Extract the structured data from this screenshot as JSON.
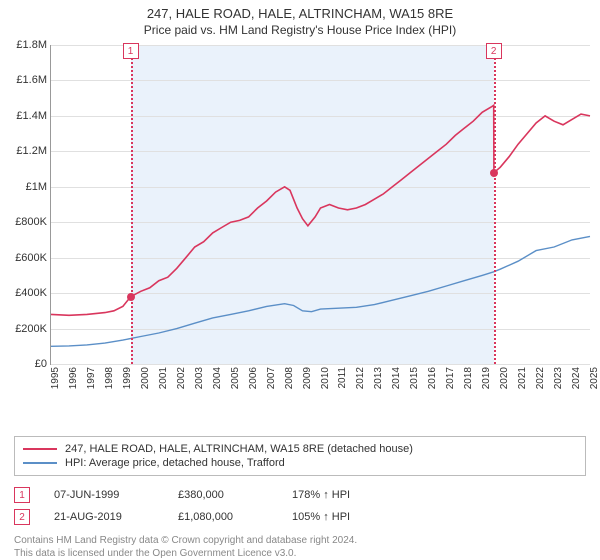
{
  "title": "247, HALE ROAD, HALE, ALTRINCHAM, WA15 8RE",
  "subtitle": "Price paid vs. HM Land Registry's House Price Index (HPI)",
  "chart": {
    "type": "line",
    "x_min": 1995,
    "x_max": 2025,
    "y_min": 0,
    "y_max": 1800000,
    "y_ticks": [
      0,
      200000,
      400000,
      600000,
      800000,
      1000000,
      1200000,
      1400000,
      1600000,
      1800000
    ],
    "y_tick_labels": [
      "£0",
      "£200K",
      "£400K",
      "£600K",
      "£800K",
      "£1M",
      "£1.2M",
      "£1.4M",
      "£1.6M",
      "£1.8M"
    ],
    "x_ticks": [
      1995,
      1996,
      1997,
      1998,
      1999,
      2000,
      2001,
      2002,
      2003,
      2004,
      2005,
      2006,
      2007,
      2008,
      2009,
      2010,
      2011,
      2012,
      2013,
      2014,
      2015,
      2016,
      2017,
      2018,
      2019,
      2020,
      2021,
      2022,
      2023,
      2024,
      2025
    ],
    "background_color": "#ffffff",
    "grid_color": "#e0e0e0",
    "axis_color": "#999999",
    "shade_color": "#eaf2fb",
    "shade_x_from": 1999.43,
    "shade_x_to": 2019.64,
    "series": [
      {
        "name": "price_paid",
        "color": "#d9365d",
        "width": 1.6,
        "points": [
          [
            1995.0,
            280000
          ],
          [
            1996.0,
            275000
          ],
          [
            1997.0,
            280000
          ],
          [
            1998.0,
            290000
          ],
          [
            1998.5,
            300000
          ],
          [
            1999.0,
            325000
          ],
          [
            1999.43,
            380000
          ],
          [
            2000.0,
            410000
          ],
          [
            2000.5,
            430000
          ],
          [
            2001.0,
            470000
          ],
          [
            2001.5,
            490000
          ],
          [
            2002.0,
            540000
          ],
          [
            2002.5,
            600000
          ],
          [
            2003.0,
            660000
          ],
          [
            2003.5,
            690000
          ],
          [
            2004.0,
            740000
          ],
          [
            2004.5,
            770000
          ],
          [
            2005.0,
            800000
          ],
          [
            2005.5,
            810000
          ],
          [
            2006.0,
            830000
          ],
          [
            2006.5,
            880000
          ],
          [
            2007.0,
            920000
          ],
          [
            2007.5,
            970000
          ],
          [
            2008.0,
            1000000
          ],
          [
            2008.3,
            980000
          ],
          [
            2008.7,
            880000
          ],
          [
            2009.0,
            820000
          ],
          [
            2009.3,
            780000
          ],
          [
            2009.7,
            830000
          ],
          [
            2010.0,
            880000
          ],
          [
            2010.5,
            900000
          ],
          [
            2011.0,
            880000
          ],
          [
            2011.5,
            870000
          ],
          [
            2012.0,
            880000
          ],
          [
            2012.5,
            900000
          ],
          [
            2013.0,
            930000
          ],
          [
            2013.5,
            960000
          ],
          [
            2014.0,
            1000000
          ],
          [
            2014.5,
            1040000
          ],
          [
            2015.0,
            1080000
          ],
          [
            2015.5,
            1120000
          ],
          [
            2016.0,
            1160000
          ],
          [
            2016.5,
            1200000
          ],
          [
            2017.0,
            1240000
          ],
          [
            2017.5,
            1290000
          ],
          [
            2018.0,
            1330000
          ],
          [
            2018.5,
            1370000
          ],
          [
            2019.0,
            1420000
          ],
          [
            2019.5,
            1450000
          ],
          [
            2019.64,
            1460000
          ],
          [
            2019.65,
            1080000
          ],
          [
            2020.0,
            1110000
          ],
          [
            2020.5,
            1170000
          ],
          [
            2021.0,
            1240000
          ],
          [
            2021.5,
            1300000
          ],
          [
            2022.0,
            1360000
          ],
          [
            2022.5,
            1400000
          ],
          [
            2023.0,
            1370000
          ],
          [
            2023.5,
            1350000
          ],
          [
            2024.0,
            1380000
          ],
          [
            2024.5,
            1410000
          ],
          [
            2025.0,
            1400000
          ]
        ]
      },
      {
        "name": "hpi",
        "color": "#5b8fc7",
        "width": 1.4,
        "points": [
          [
            1995.0,
            100000
          ],
          [
            1996.0,
            102000
          ],
          [
            1997.0,
            108000
          ],
          [
            1998.0,
            118000
          ],
          [
            1999.0,
            135000
          ],
          [
            2000.0,
            155000
          ],
          [
            2001.0,
            175000
          ],
          [
            2002.0,
            200000
          ],
          [
            2003.0,
            230000
          ],
          [
            2004.0,
            260000
          ],
          [
            2005.0,
            280000
          ],
          [
            2006.0,
            300000
          ],
          [
            2007.0,
            325000
          ],
          [
            2008.0,
            340000
          ],
          [
            2008.5,
            330000
          ],
          [
            2009.0,
            300000
          ],
          [
            2009.5,
            295000
          ],
          [
            2010.0,
            310000
          ],
          [
            2011.0,
            315000
          ],
          [
            2012.0,
            320000
          ],
          [
            2013.0,
            335000
          ],
          [
            2014.0,
            360000
          ],
          [
            2015.0,
            385000
          ],
          [
            2016.0,
            410000
          ],
          [
            2017.0,
            440000
          ],
          [
            2018.0,
            470000
          ],
          [
            2019.0,
            500000
          ],
          [
            2019.64,
            520000
          ],
          [
            2020.0,
            535000
          ],
          [
            2021.0,
            580000
          ],
          [
            2022.0,
            640000
          ],
          [
            2023.0,
            660000
          ],
          [
            2024.0,
            700000
          ],
          [
            2025.0,
            720000
          ]
        ]
      }
    ],
    "markers": [
      {
        "n": "1",
        "x": 1999.43,
        "y": 380000,
        "color": "#d9365d"
      },
      {
        "n": "2",
        "x": 2019.64,
        "y": 1080000,
        "color": "#d9365d"
      }
    ]
  },
  "legend": [
    {
      "color": "#d9365d",
      "label": "247, HALE ROAD, HALE, ALTRINCHAM, WA15 8RE (detached house)"
    },
    {
      "color": "#5b8fc7",
      "label": "HPI: Average price, detached house, Trafford"
    }
  ],
  "sales": [
    {
      "n": "1",
      "date": "07-JUN-1999",
      "price": "£380,000",
      "hpi": "178% ↑ HPI"
    },
    {
      "n": "2",
      "date": "21-AUG-2019",
      "price": "£1,080,000",
      "hpi": "105% ↑ HPI"
    }
  ],
  "footnote_line1": "Contains HM Land Registry data © Crown copyright and database right 2024.",
  "footnote_line2": "This data is licensed under the Open Government Licence v3.0.",
  "font": {
    "title_size": 13,
    "label_size": 11,
    "tick_size": 10
  }
}
